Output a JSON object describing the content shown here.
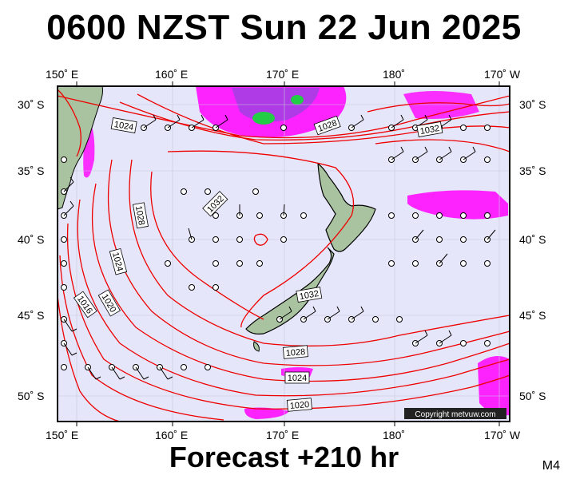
{
  "title": "0600 NZST Sun 22 Jun 2025",
  "footer": "Forecast +210 hr",
  "model": "M4",
  "copyright": "Copyright metvuw.com",
  "axes": {
    "lon_labels": [
      "150˚ E",
      "160˚ E",
      "170˚ E",
      "180˚",
      "170˚ W"
    ],
    "lat_labels": [
      "30˚ S",
      "35˚ S",
      "40˚ S",
      "45˚ S",
      "50˚ S"
    ]
  },
  "isobar_labels": [
    "1024",
    "1028",
    "1032",
    "1028",
    "1032",
    "1024",
    "1020",
    "1016",
    "1032",
    "1028",
    "1024",
    "1020"
  ],
  "colors": {
    "sea": "#e6e6fa",
    "isobar": "#ee0000",
    "land": "#a9c3a0",
    "rain_light": "#ff00ff",
    "rain_heavy": "#7a28d8"
  }
}
